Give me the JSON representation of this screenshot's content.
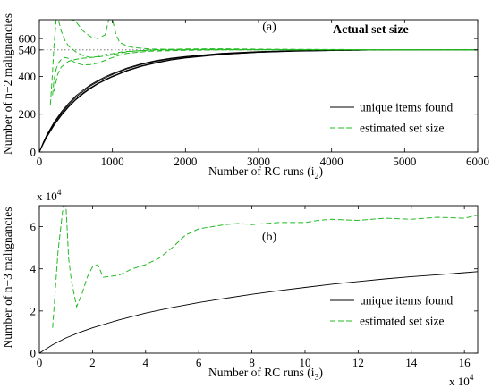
{
  "chart_data": [
    {
      "panel_label": "(a)",
      "type": "line",
      "xlabel": "Number of RC runs (i",
      "xlabel_sub": "2",
      "xlabel_end": ")",
      "ylabel": "Number of n−2 malignancies",
      "xlim": [
        0,
        6000
      ],
      "ylim": [
        0,
        700
      ],
      "xticks": [
        0,
        1000,
        2000,
        3000,
        4000,
        5000,
        6000
      ],
      "xtick_labels": [
        "0",
        "1000",
        "2000",
        "3000",
        "4000",
        "5000",
        "6000"
      ],
      "yticks": [
        0,
        200,
        400,
        540,
        600
      ],
      "ytick_labels": [
        "0",
        "200",
        "400",
        "540",
        "600"
      ],
      "annotation": "Actual set size",
      "reference_line": {
        "y": 540,
        "style": "dotted"
      },
      "legend": {
        "position": "lower-right",
        "entries": [
          "unique items found",
          "estimated set size"
        ]
      },
      "colors": {
        "unique": "#000000",
        "estimated": "#22bb22"
      },
      "series": [
        {
          "name": "unique items found",
          "kind": "unique",
          "x": [
            0,
            50,
            100,
            200,
            300,
            400,
            500,
            600,
            700,
            800,
            900,
            1000,
            1200,
            1400,
            1600,
            1800,
            2000,
            2500,
            3000,
            3500,
            4000,
            4500,
            5000,
            5500,
            6000
          ],
          "y": [
            0,
            45,
            85,
            150,
            205,
            250,
            290,
            320,
            350,
            372,
            392,
            410,
            440,
            463,
            480,
            493,
            503,
            520,
            530,
            535,
            538,
            539,
            540,
            540,
            540
          ]
        },
        {
          "kind": "unique",
          "x": [
            0,
            50,
            100,
            200,
            300,
            400,
            500,
            600,
            700,
            800,
            900,
            1000,
            1200,
            1400,
            1600,
            1800,
            2000,
            2500,
            3000,
            3500,
            4000,
            4500,
            5000,
            5500,
            6000
          ],
          "y": [
            0,
            42,
            80,
            143,
            197,
            242,
            280,
            312,
            340,
            363,
            383,
            401,
            432,
            456,
            474,
            488,
            499,
            517,
            528,
            534,
            537,
            539,
            540,
            540,
            540
          ]
        },
        {
          "kind": "unique",
          "x": [
            0,
            50,
            100,
            200,
            300,
            400,
            500,
            600,
            700,
            800,
            900,
            1000,
            1200,
            1400,
            1600,
            1800,
            2000,
            2500,
            3000,
            3500,
            4000,
            4500,
            5000,
            5500,
            6000
          ],
          "y": [
            0,
            48,
            90,
            156,
            212,
            258,
            297,
            328,
            356,
            378,
            398,
            415,
            444,
            467,
            484,
            496,
            505,
            522,
            531,
            536,
            539,
            540,
            540,
            540,
            540
          ]
        },
        {
          "kind": "unique",
          "x": [
            0,
            50,
            100,
            200,
            300,
            400,
            500,
            600,
            700,
            800,
            900,
            1000,
            1200,
            1400,
            1600,
            1800,
            2000,
            2500,
            3000,
            3500,
            4000,
            4500,
            5000,
            5500,
            6000
          ],
          "y": [
            0,
            40,
            78,
            140,
            193,
            238,
            276,
            308,
            336,
            360,
            380,
            398,
            429,
            453,
            471,
            486,
            497,
            516,
            527,
            533,
            537,
            539,
            540,
            540,
            540
          ]
        },
        {
          "name": "estimated set size",
          "kind": "estimated",
          "x": [
            150,
            180,
            200,
            230,
            260,
            300,
            350,
            400,
            500,
            600,
            700,
            800,
            900,
            1000,
            1100,
            1200,
            1500,
            2000,
            2500,
            3000,
            4000,
            5000,
            6000
          ],
          "y": [
            250,
            420,
            560,
            700,
            700,
            640,
            590,
            560,
            530,
            510,
            500,
            505,
            515,
            520,
            528,
            532,
            538,
            541,
            541,
            540,
            540,
            540,
            540
          ]
        },
        {
          "kind": "estimated",
          "x": [
            180,
            200,
            230,
            260,
            300,
            350,
            400,
            500,
            600,
            700,
            800,
            900,
            1000,
            1100,
            1200,
            1500,
            2000,
            2500,
            3000,
            4000,
            5000,
            6000
          ],
          "y": [
            300,
            380,
            440,
            470,
            490,
            500,
            495,
            470,
            460,
            462,
            470,
            485,
            500,
            512,
            522,
            533,
            538,
            540,
            541,
            540,
            540,
            540
          ]
        },
        {
          "kind": "estimated",
          "x": [
            300,
            350,
            400,
            450,
            500,
            600,
            700,
            800,
            900,
            950,
            1000,
            1050,
            1100,
            1200,
            1300,
            1500,
            2000,
            2500,
            3000,
            4000,
            5000,
            6000
          ],
          "y": [
            700,
            700,
            700,
            700,
            690,
            640,
            610,
            600,
            620,
            700,
            700,
            620,
            580,
            560,
            552,
            545,
            542,
            542,
            541,
            541,
            540,
            540
          ]
        },
        {
          "kind": "estimated",
          "x": [
            200,
            250,
            300,
            400,
            500,
            600,
            700,
            800,
            900,
            1000,
            1200,
            1500,
            2000,
            2500,
            3000,
            4000,
            5000,
            6000
          ],
          "y": [
            320,
            410,
            450,
            480,
            490,
            496,
            500,
            503,
            508,
            515,
            530,
            540,
            545,
            546,
            544,
            542,
            541,
            540
          ]
        }
      ]
    },
    {
      "panel_label": "(b)",
      "type": "line",
      "xlabel": "Number of RC runs (i",
      "xlabel_sub": "3",
      "xlabel_end": ")",
      "ylabel": "Number of n−3 malignancies",
      "xlim": [
        0,
        16.5
      ],
      "ylim": [
        0,
        7
      ],
      "x_multiplier_label": "x 10",
      "x_multiplier_exp": "4",
      "y_multiplier_label": "x 10",
      "y_multiplier_exp": "4",
      "xticks": [
        0,
        2,
        4,
        6,
        8,
        10,
        12,
        14,
        16
      ],
      "xtick_labels": [
        "0",
        "2",
        "4",
        "6",
        "8",
        "10",
        "12",
        "14",
        "16"
      ],
      "yticks": [
        0,
        2,
        4,
        6
      ],
      "ytick_labels": [
        "0",
        "2",
        "4",
        "6"
      ],
      "legend": {
        "position": "lower-right",
        "entries": [
          "unique items found",
          "estimated set size"
        ]
      },
      "colors": {
        "unique": "#000000",
        "estimated": "#22bb22"
      },
      "series": [
        {
          "name": "unique items found",
          "kind": "unique",
          "x": [
            0,
            0.5,
            1,
            1.5,
            2,
            3,
            4,
            5,
            6,
            7,
            8,
            9,
            10,
            11,
            12,
            13,
            14,
            15,
            16,
            16.5
          ],
          "y": [
            0,
            0.4,
            0.72,
            0.98,
            1.2,
            1.58,
            1.9,
            2.17,
            2.4,
            2.6,
            2.79,
            2.96,
            3.12,
            3.27,
            3.4,
            3.52,
            3.63,
            3.72,
            3.82,
            3.87
          ]
        },
        {
          "name": "estimated set size",
          "kind": "estimated",
          "x": [
            0.5,
            0.7,
            0.9,
            1.0,
            1.05,
            1.1,
            1.2,
            1.4,
            1.6,
            1.8,
            2.0,
            2.2,
            2.4,
            3.0,
            3.5,
            4.0,
            4.5,
            5.0,
            5.5,
            6.0,
            6.5,
            7.0,
            7.5,
            8.0,
            9.0,
            10.0,
            10.5,
            11.0,
            12.0,
            13.0,
            14.0,
            15.0,
            16.0,
            16.5
          ],
          "y": [
            1.2,
            4.8,
            7.0,
            7.0,
            5.8,
            4.5,
            3.5,
            2.2,
            2.8,
            3.6,
            4.1,
            4.2,
            3.6,
            3.7,
            4.0,
            4.2,
            4.5,
            5.0,
            5.6,
            5.9,
            6.0,
            6.1,
            6.15,
            6.1,
            6.2,
            6.2,
            6.3,
            6.35,
            6.3,
            6.4,
            6.35,
            6.45,
            6.4,
            6.55
          ]
        }
      ]
    }
  ]
}
